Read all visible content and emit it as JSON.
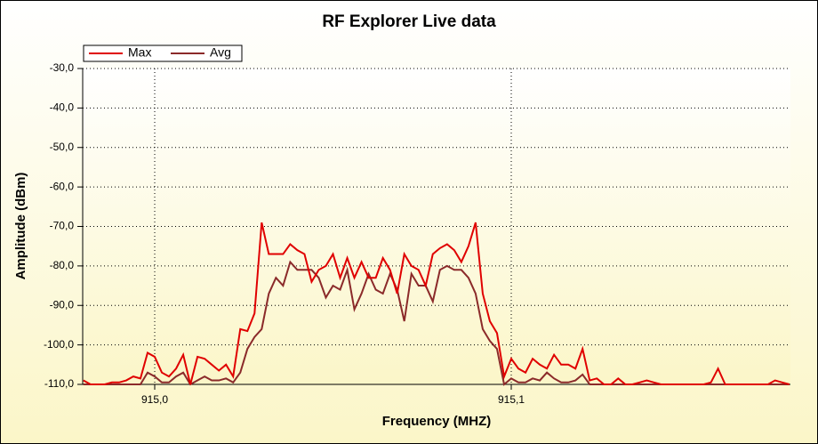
{
  "chart_data": {
    "type": "line",
    "title": "RF Explorer Live data",
    "x_label": "Frequency (MHZ)",
    "y_label": "Amplitude (dBm)",
    "x": [
      914.98,
      914.982,
      914.984,
      914.986,
      914.988,
      914.99,
      914.992,
      914.994,
      914.996,
      914.998,
      915,
      915.002,
      915.004,
      915.006,
      915.008,
      915.01,
      915.012,
      915.014,
      915.016,
      915.018,
      915.02,
      915.022,
      915.024,
      915.026,
      915.028,
      915.03,
      915.032,
      915.034,
      915.036,
      915.038,
      915.04,
      915.042,
      915.044,
      915.046,
      915.048,
      915.05,
      915.052,
      915.054,
      915.056,
      915.058,
      915.06,
      915.062,
      915.064,
      915.066,
      915.068,
      915.07,
      915.072,
      915.074,
      915.076,
      915.078,
      915.08,
      915.082,
      915.084,
      915.086,
      915.088,
      915.09,
      915.092,
      915.094,
      915.096,
      915.098,
      915.1,
      915.102,
      915.104,
      915.106,
      915.108,
      915.11,
      915.112,
      915.114,
      915.116,
      915.118,
      915.12,
      915.122,
      915.124,
      915.126,
      915.128,
      915.13,
      915.132,
      915.134,
      915.136,
      915.138,
      915.14,
      915.142,
      915.144,
      915.146,
      915.148,
      915.15,
      915.152,
      915.154,
      915.156,
      915.158,
      915.16,
      915.162,
      915.164,
      915.166,
      915.168,
      915.17,
      915.172,
      915.174,
      915.176,
      915.178
    ],
    "series": [
      {
        "name": "Max",
        "color": "#e00000",
        "values": [
          -109,
          -110,
          -110,
          -110,
          -109.5,
          -109.5,
          -109,
          -108,
          -108.5,
          -102,
          -103,
          -107,
          -108,
          -106,
          -102.5,
          -110,
          -103,
          -103.5,
          -105,
          -106.5,
          -105,
          -108,
          -96,
          -96.5,
          -92,
          -69,
          -77,
          -77,
          -77,
          -74.5,
          -76,
          -77,
          -84,
          -81,
          -80,
          -77,
          -83,
          -78,
          -83,
          -79,
          -83,
          -83,
          -78,
          -81,
          -87,
          -77,
          -80,
          -81,
          -85,
          -77,
          -75.5,
          -74.5,
          -76,
          -79,
          -75,
          -69,
          -87,
          -94,
          -97,
          -108,
          -103.5,
          -106,
          -107,
          -103.5,
          -105,
          -106,
          -102.5,
          -105,
          -105,
          -106,
          -101,
          -109,
          -108.5,
          -110,
          -110,
          -108.5,
          -110,
          -110,
          -109.5,
          -109,
          -109.5,
          -110,
          -110,
          -110,
          -110,
          -110,
          -110,
          -110,
          -109.5,
          -106,
          -110,
          -110,
          -110,
          -110,
          -110,
          -110,
          -110,
          -109,
          -109.5,
          -110
        ]
      },
      {
        "name": "Avg",
        "color": "#8b2a2a",
        "values": [
          -110,
          -110,
          -110,
          -110,
          -110,
          -110,
          -110,
          -110,
          -110,
          -107,
          -108,
          -109.5,
          -109.5,
          -108,
          -107,
          -110,
          -109,
          -108,
          -109,
          -109,
          -108.5,
          -109.5,
          -107,
          -101,
          -98,
          -96,
          -87,
          -83,
          -85,
          -79,
          -81,
          -81,
          -81,
          -83,
          -88,
          -85,
          -86,
          -81,
          -91,
          -87,
          -82,
          -86,
          -87,
          -82,
          -86,
          -94,
          -82,
          -85,
          -85,
          -89,
          -81,
          -80,
          -81,
          -81,
          -83,
          -87,
          -96,
          -99,
          -101,
          -110,
          -108.5,
          -109.5,
          -109.5,
          -108.5,
          -109,
          -107,
          -108.5,
          -109.5,
          -109.5,
          -109,
          -107.5,
          -110,
          -110,
          -110,
          -110,
          -110,
          -110,
          -110,
          -110,
          -110,
          -110,
          -110,
          -110,
          -110,
          -110,
          -110,
          -110,
          -110,
          -110,
          -110,
          -110,
          -110,
          -110,
          -110,
          -110,
          -110,
          -110,
          -110,
          -110,
          -110
        ]
      }
    ],
    "xlim": [
      914.9798,
      915.1783
    ],
    "xticks": [
      {
        "value": 915.0,
        "label": "915,0"
      },
      {
        "value": 915.1,
        "label": "915,1"
      }
    ],
    "ylim": [
      -110,
      -30
    ],
    "yticks": [
      {
        "value": -30,
        "label": "-30,0"
      },
      {
        "value": -40,
        "label": "-40,0"
      },
      {
        "value": -50,
        "label": "-50,0"
      },
      {
        "value": -60,
        "label": "-60,0"
      },
      {
        "value": -70,
        "label": "-70,0"
      },
      {
        "value": -80,
        "label": "-80,0"
      },
      {
        "value": -90,
        "label": "-90,0"
      },
      {
        "value": -100,
        "label": "-100,0"
      },
      {
        "value": -110,
        "label": "-110,0"
      }
    ],
    "grid": true,
    "legend": "top-left"
  }
}
